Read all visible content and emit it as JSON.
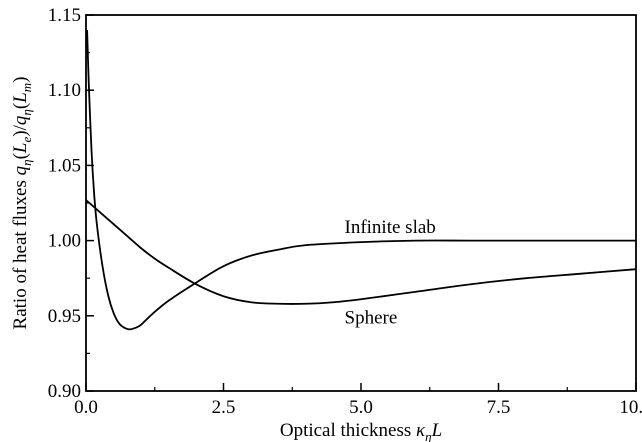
{
  "chart_data": {
    "type": "line",
    "title": "",
    "xlabel": {
      "prefix": "Optical thickness ",
      "kappa": "κ",
      "sub_eta": "η",
      "L": "L"
    },
    "ylabel": {
      "text": "Ratio of heat fluxes ",
      "q": "q",
      "eta": "η",
      "L": "L",
      "e": "e",
      "m": "m",
      "slash": "/",
      "lparen": "(",
      "rparen": ")"
    },
    "xlim": [
      0,
      10
    ],
    "ylim": [
      0.9,
      1.15
    ],
    "xticks": [
      0,
      2.5,
      5,
      7.5,
      10
    ],
    "xtick_labels": [
      "0.0",
      "2.5",
      "5.0",
      "7.5",
      "10.0"
    ],
    "yticks": [
      0.9,
      0.95,
      1.0,
      1.05,
      1.1,
      1.15
    ],
    "ytick_labels": [
      "0.90",
      "0.95",
      "1.00",
      "1.05",
      "1.10",
      "1.15"
    ],
    "grid": false,
    "legend": "none",
    "series": [
      {
        "name": "Infinite slab",
        "x": [
          0,
          0.25,
          0.5,
          0.75,
          1.0,
          1.25,
          1.5,
          2.0,
          2.5,
          3.0,
          3.5,
          4.0,
          4.5,
          5.0,
          6.0,
          7.0,
          8.0,
          9.0,
          10.0
        ],
        "y": [
          1.027,
          1.019,
          1.011,
          1.003,
          0.995,
          0.988,
          0.982,
          0.971,
          0.963,
          0.959,
          0.958,
          0.958,
          0.959,
          0.961,
          0.966,
          0.971,
          0.975,
          0.978,
          0.981
        ]
      },
      {
        "name": "Sphere",
        "x": [
          0.02,
          0.05,
          0.1,
          0.15,
          0.2,
          0.3,
          0.4,
          0.5,
          0.6,
          0.7,
          0.8,
          0.9,
          1.0,
          1.2,
          1.5,
          2.0,
          2.5,
          3.0,
          3.5,
          4.0,
          5.0,
          6.0,
          7.0,
          8.0,
          9.0,
          10.0
        ],
        "y": [
          1.14,
          1.105,
          1.06,
          1.03,
          1.01,
          0.983,
          0.964,
          0.952,
          0.945,
          0.942,
          0.941,
          0.942,
          0.944,
          0.951,
          0.96,
          0.972,
          0.983,
          0.99,
          0.994,
          0.997,
          0.999,
          1.0,
          1.0,
          1.0,
          1.0,
          1.0
        ]
      }
    ],
    "annotations": [
      {
        "text": "Infinite slab",
        "x": 4.7,
        "y": 1.005
      },
      {
        "text": "Sphere",
        "x": 4.7,
        "y": 0.945
      }
    ]
  }
}
